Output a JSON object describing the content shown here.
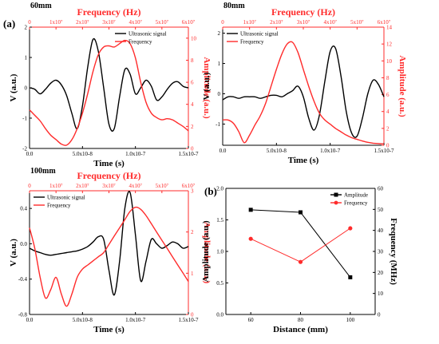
{
  "figure": {
    "label_a": "(a)",
    "label_b": "(b)"
  },
  "colors": {
    "signal": "#000000",
    "frequency": "#ff2b2b"
  },
  "chart_data": [
    {
      "type": "line",
      "tag": "60mm",
      "title": "Frequency (Hz)",
      "xlabel": "Time (s)",
      "ylabel": "V (a.u.)",
      "y2label": "Amplitude (a.u.)",
      "xlim": [
        0,
        1.5e-07
      ],
      "ylim": [
        -2,
        2
      ],
      "y2lim": [
        0,
        11
      ],
      "x2lim": [
        0,
        60000000.0
      ],
      "xticks": [
        0,
        5e-08,
        1e-07,
        1.5e-07
      ],
      "xtick_labels": [
        "0.0",
        "5.0x10-8",
        "1.0x10-7",
        "1.5x10-7"
      ],
      "yticks": [
        -2,
        -1,
        0,
        1,
        2
      ],
      "ytick_labels": [
        "-2",
        "-1",
        "0",
        "1",
        "2"
      ],
      "y2ticks": [
        0,
        2,
        4,
        6,
        8,
        10
      ],
      "y2tick_labels": [
        "0",
        "2",
        "4",
        "6",
        "8",
        "10"
      ],
      "x2ticks": [
        0,
        10000000.0,
        20000000.0,
        30000000.0,
        40000000.0,
        50000000.0,
        60000000.0
      ],
      "x2tick_labels": [
        "0",
        "1x10⁷",
        "2x10⁷",
        "3x10⁷",
        "4x10⁷",
        "5x10⁷",
        "6x10⁷"
      ],
      "legend": [
        "Ultrasonic signal",
        "Frequency"
      ],
      "legend_position": "top-right",
      "series": [
        {
          "name": "Ultrasonic signal",
          "axis": "primary",
          "x": [
            0,
            5e-09,
            1e-08,
            1.5e-08,
            2e-08,
            2.5e-08,
            3e-08,
            3.5e-08,
            4e-08,
            4.5e-08,
            5e-08,
            5.5e-08,
            6e-08,
            6.5e-08,
            7e-08,
            7.5e-08,
            8e-08,
            8.5e-08,
            9e-08,
            9.5e-08,
            1e-07,
            1.05e-07,
            1.1e-07,
            1.15e-07,
            1.2e-07,
            1.25e-07,
            1.3e-07,
            1.35e-07,
            1.4e-07,
            1.45e-07,
            1.5e-07
          ],
          "y": [
            0.0,
            -0.05,
            -0.2,
            -0.05,
            0.15,
            0.25,
            0.1,
            -0.25,
            -0.85,
            -1.35,
            -0.6,
            0.7,
            1.6,
            1.2,
            0.0,
            -1.2,
            -1.35,
            -0.3,
            0.6,
            0.45,
            -0.2,
            0.0,
            0.25,
            0.05,
            -0.4,
            -0.3,
            -0.05,
            0.15,
            0.2,
            0.05,
            0.0
          ]
        },
        {
          "name": "Frequency",
          "axis": "secondary",
          "x": [
            0,
            5e-09,
            1e-08,
            1.5e-08,
            2e-08,
            2.5e-08,
            3e-08,
            3.5e-08,
            4e-08,
            4.5e-08,
            5e-08,
            5.5e-08,
            6e-08,
            6.5e-08,
            7e-08,
            7.5e-08,
            8e-08,
            8.5e-08,
            9e-08,
            9.5e-08,
            1e-07,
            1.05e-07,
            1.1e-07,
            1.15e-07,
            1.2e-07,
            1.25e-07,
            1.3e-07,
            1.35e-07,
            1.4e-07,
            1.45e-07,
            1.5e-07
          ],
          "y": [
            3.5,
            3.0,
            2.5,
            1.8,
            1.2,
            0.8,
            0.4,
            0.3,
            0.8,
            1.8,
            3.2,
            5.0,
            7.0,
            8.5,
            9.2,
            9.3,
            9.2,
            9.5,
            9.8,
            9.5,
            8.2,
            6.0,
            4.2,
            3.2,
            2.8,
            2.6,
            2.7,
            2.6,
            2.3,
            2.0,
            1.6
          ]
        }
      ]
    },
    {
      "type": "line",
      "tag": "80mm",
      "title": "Frequency (Hz)",
      "xlabel": "Time (s)",
      "ylabel": "V (a.u.)",
      "y2label": "Amplitude (a.u.)",
      "xlim": [
        0,
        1.5e-07
      ],
      "ylim": [
        -1.7,
        2.2
      ],
      "y2lim": [
        0,
        14
      ],
      "x2lim": [
        0,
        60000000.0
      ],
      "xticks": [
        0,
        5e-08,
        1e-07,
        1.5e-07
      ],
      "xtick_labels": [
        "0.0",
        "5.0x10-8",
        "1.0x10-7",
        "1.5x10-7"
      ],
      "yticks": [
        -1,
        0,
        1,
        2
      ],
      "ytick_labels": [
        "-1",
        "0",
        "1",
        "2"
      ],
      "y2ticks": [
        0,
        2,
        4,
        6,
        8,
        10,
        12,
        14
      ],
      "y2tick_labels": [
        "0",
        "2",
        "4",
        "6",
        "8",
        "10",
        "12",
        "14"
      ],
      "x2ticks": [
        0,
        10000000.0,
        20000000.0,
        30000000.0,
        40000000.0,
        50000000.0,
        60000000.0
      ],
      "x2tick_labels": [
        "0",
        "1x10⁷",
        "2x10⁷",
        "3x10⁷",
        "4x10⁷",
        "5x10⁷",
        "6x10⁷"
      ],
      "legend": [
        "Ultrasonic signal",
        "Frequency"
      ],
      "legend_position": "top-left",
      "series": [
        {
          "name": "Ultrasonic signal",
          "axis": "primary",
          "x": [
            0,
            5e-09,
            1e-08,
            1.5e-08,
            2e-08,
            2.5e-08,
            3e-08,
            3.5e-08,
            4e-08,
            4.5e-08,
            5e-08,
            5.5e-08,
            6e-08,
            6.5e-08,
            7e-08,
            7.5e-08,
            8e-08,
            8.5e-08,
            9e-08,
            9.5e-08,
            1e-07,
            1.05e-07,
            1.1e-07,
            1.15e-07,
            1.2e-07,
            1.25e-07,
            1.3e-07,
            1.35e-07,
            1.4e-07,
            1.45e-07,
            1.5e-07
          ],
          "y": [
            -0.2,
            -0.1,
            -0.1,
            -0.15,
            -0.1,
            -0.1,
            -0.1,
            -0.15,
            -0.1,
            -0.05,
            -0.05,
            -0.1,
            0.0,
            0.1,
            0.25,
            -0.1,
            -0.8,
            -1.2,
            -0.7,
            0.4,
            1.4,
            1.5,
            0.6,
            -0.6,
            -1.3,
            -1.4,
            -0.8,
            0.0,
            0.45,
            0.3,
            -0.1
          ]
        },
        {
          "name": "Frequency",
          "axis": "secondary",
          "x": [
            0,
            5e-09,
            1e-08,
            1.5e-08,
            2e-08,
            2.5e-08,
            3e-08,
            3.5e-08,
            4e-08,
            4.5e-08,
            5e-08,
            5.5e-08,
            6e-08,
            6.5e-08,
            7e-08,
            7.5e-08,
            8e-08,
            8.5e-08,
            9e-08,
            9.5e-08,
            1e-07,
            1.05e-07,
            1.1e-07,
            1.15e-07,
            1.2e-07,
            1.25e-07,
            1.3e-07,
            1.35e-07,
            1.4e-07,
            1.45e-07,
            1.5e-07
          ],
          "y": [
            3.0,
            3.0,
            2.6,
            1.6,
            0.3,
            1.2,
            2.4,
            3.5,
            5.0,
            7.0,
            9.0,
            10.8,
            12.0,
            12.2,
            11.0,
            9.0,
            7.0,
            5.2,
            3.8,
            3.0,
            2.5,
            2.0,
            1.6,
            1.2,
            0.9,
            0.7,
            0.5,
            0.35,
            0.25,
            0.2,
            0.15
          ]
        }
      ]
    },
    {
      "type": "line",
      "tag": "100mm",
      "title": "Frequency (Hz)",
      "xlabel": "Time (s)",
      "ylabel": "V (a.u.)",
      "y2label": "Amplitude (a.u.)",
      "xlim": [
        0,
        1.5e-07
      ],
      "ylim": [
        -0.8,
        0.6
      ],
      "y2lim": [
        0,
        3
      ],
      "x2lim": [
        0,
        60000000.0
      ],
      "xticks": [
        0,
        5e-08,
        1e-07,
        1.5e-07
      ],
      "xtick_labels": [
        "0.0",
        "5.0x10-8",
        "1.0x10-7",
        "1.5x10-7"
      ],
      "yticks": [
        -0.8,
        -0.4,
        0.0,
        0.4
      ],
      "ytick_labels": [
        "-0.8",
        "-0.4",
        "0.0",
        "0.4"
      ],
      "y2ticks": [
        0,
        1,
        2,
        3
      ],
      "y2tick_labels": [
        "0",
        "1",
        "2",
        "3"
      ],
      "x2ticks": [
        0,
        10000000.0,
        20000000.0,
        30000000.0,
        40000000.0,
        50000000.0,
        60000000.0
      ],
      "x2tick_labels": [
        "0",
        "1x10⁷",
        "2x10⁷",
        "3x10⁷",
        "4x10⁷",
        "5x10⁷",
        "6x10⁷"
      ],
      "legend": [
        "Ultrasonic signal",
        "Frequency"
      ],
      "legend_position": "top-left",
      "series": [
        {
          "name": "Ultrasonic signal",
          "axis": "primary",
          "x": [
            0,
            5e-09,
            1e-08,
            1.5e-08,
            2e-08,
            2.5e-08,
            3e-08,
            3.5e-08,
            4e-08,
            4.5e-08,
            5e-08,
            5.5e-08,
            6e-08,
            6.5e-08,
            7e-08,
            7.5e-08,
            8e-08,
            8.5e-08,
            9e-08,
            9.5e-08,
            1e-07,
            1.05e-07,
            1.1e-07,
            1.15e-07,
            1.2e-07,
            1.25e-07,
            1.3e-07,
            1.35e-07,
            1.4e-07,
            1.45e-07,
            1.5e-07
          ],
          "y": [
            -0.05,
            -0.08,
            -0.1,
            -0.12,
            -0.13,
            -0.12,
            -0.11,
            -0.1,
            -0.09,
            -0.08,
            -0.06,
            -0.03,
            0.02,
            0.08,
            0.05,
            -0.3,
            -0.58,
            -0.2,
            0.4,
            0.58,
            0.1,
            -0.42,
            -0.2,
            0.05,
            0.0,
            -0.05,
            -0.02,
            0.02,
            0.0,
            -0.05,
            -0.03
          ]
        },
        {
          "name": "Frequency",
          "axis": "secondary",
          "x": [
            0,
            5e-09,
            1e-08,
            1.5e-08,
            2e-08,
            2.5e-08,
            3e-08,
            3.5e-08,
            4e-08,
            4.5e-08,
            5e-08,
            5.5e-08,
            6e-08,
            6.5e-08,
            7e-08,
            7.5e-08,
            8e-08,
            8.5e-08,
            9e-08,
            9.5e-08,
            1e-07,
            1.05e-07,
            1.1e-07,
            1.15e-07,
            1.2e-07,
            1.25e-07,
            1.3e-07,
            1.35e-07,
            1.4e-07,
            1.45e-07,
            1.5e-07
          ],
          "y": [
            2.1,
            1.6,
            0.9,
            0.4,
            0.6,
            0.9,
            0.5,
            0.2,
            0.5,
            0.9,
            1.1,
            1.2,
            1.3,
            1.4,
            1.5,
            1.7,
            1.9,
            2.1,
            2.3,
            2.5,
            2.6,
            2.55,
            2.4,
            2.2,
            2.0,
            1.8,
            1.6,
            1.4,
            1.2,
            1.0,
            0.8
          ]
        }
      ]
    },
    {
      "type": "line",
      "tag": "(b)",
      "title": "",
      "xlabel": "Distance (mm)",
      "ylabel": "Amplitude (a.u.)",
      "y2label": "Frequency (MHz)",
      "xlim": [
        50,
        110
      ],
      "ylim": [
        0,
        2.0
      ],
      "y2lim": [
        0,
        60
      ],
      "xticks": [
        60,
        80,
        100
      ],
      "xtick_labels": [
        "60",
        "80",
        "100"
      ],
      "yticks": [
        0.0,
        0.5,
        1.0,
        1.5,
        2.0
      ],
      "ytick_labels": [
        "0.0",
        "0.5",
        "1.0",
        "1.5",
        "2.0"
      ],
      "y2ticks": [
        0,
        10,
        20,
        30,
        40,
        50,
        60
      ],
      "y2tick_labels": [
        "0",
        "10",
        "20",
        "30",
        "40",
        "50",
        "60"
      ],
      "legend": [
        "Amplitude",
        "Frequency"
      ],
      "legend_position": "top-right",
      "series": [
        {
          "name": "Amplitude",
          "axis": "primary",
          "marker": "square",
          "x": [
            60,
            80,
            100
          ],
          "y": [
            1.66,
            1.62,
            0.59
          ]
        },
        {
          "name": "Frequency",
          "axis": "secondary",
          "marker": "circle",
          "x": [
            60,
            80,
            100
          ],
          "y": [
            36,
            25,
            41
          ]
        }
      ]
    }
  ]
}
